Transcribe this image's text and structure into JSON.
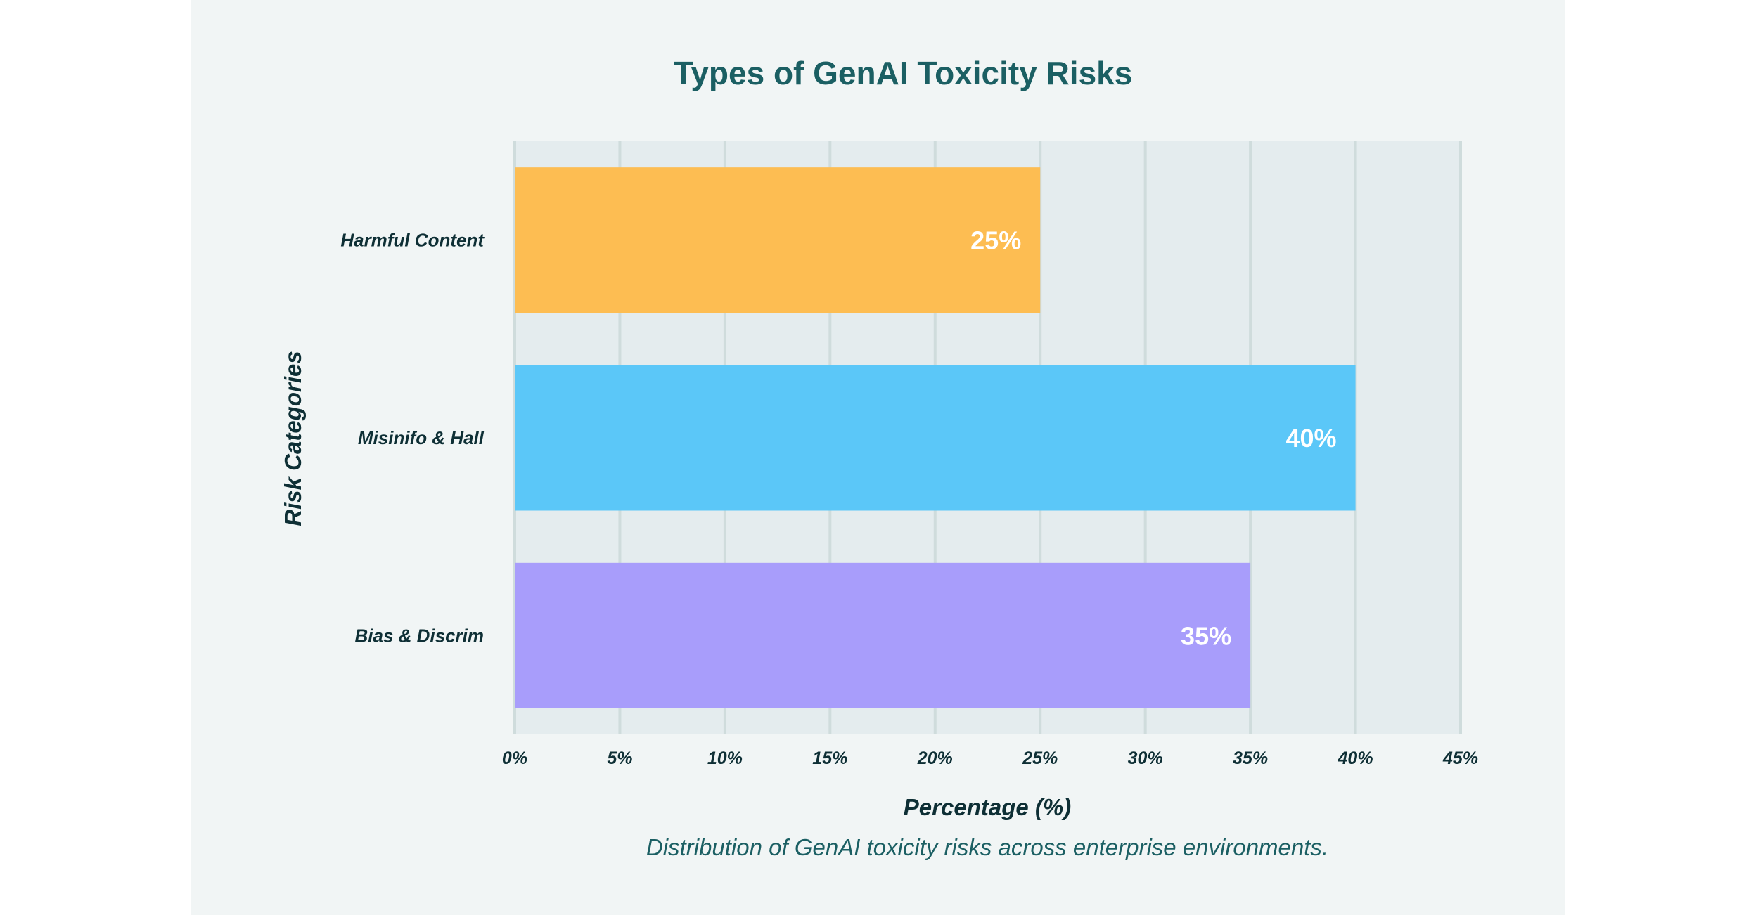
{
  "chart_data": {
    "type": "bar",
    "orientation": "horizontal",
    "title": "Types of GenAI Toxicity Risks",
    "xlabel": "Percentage (%)",
    "ylabel": "Risk Categories",
    "caption": "Distribution of GenAI toxicity risks across enterprise environments.",
    "categories": [
      "Harmful Content",
      "Misinifo & Hall",
      "Bias & Discrim"
    ],
    "values": [
      25,
      40,
      35
    ],
    "value_labels": [
      "25%",
      "40%",
      "35%"
    ],
    "colors": [
      "#fdbd52",
      "#5bc7f8",
      "#a89dfb"
    ],
    "xlim": [
      0,
      45
    ],
    "xticks": [
      0,
      5,
      10,
      15,
      20,
      25,
      30,
      35,
      40,
      45
    ],
    "xtick_labels": [
      "0%",
      "5%",
      "10%",
      "15%",
      "20%",
      "25%",
      "30%",
      "35%",
      "40%",
      "45%"
    ],
    "grid": true,
    "grid_color": "#cfdcdc",
    "plot_background": "#e4ecee"
  }
}
